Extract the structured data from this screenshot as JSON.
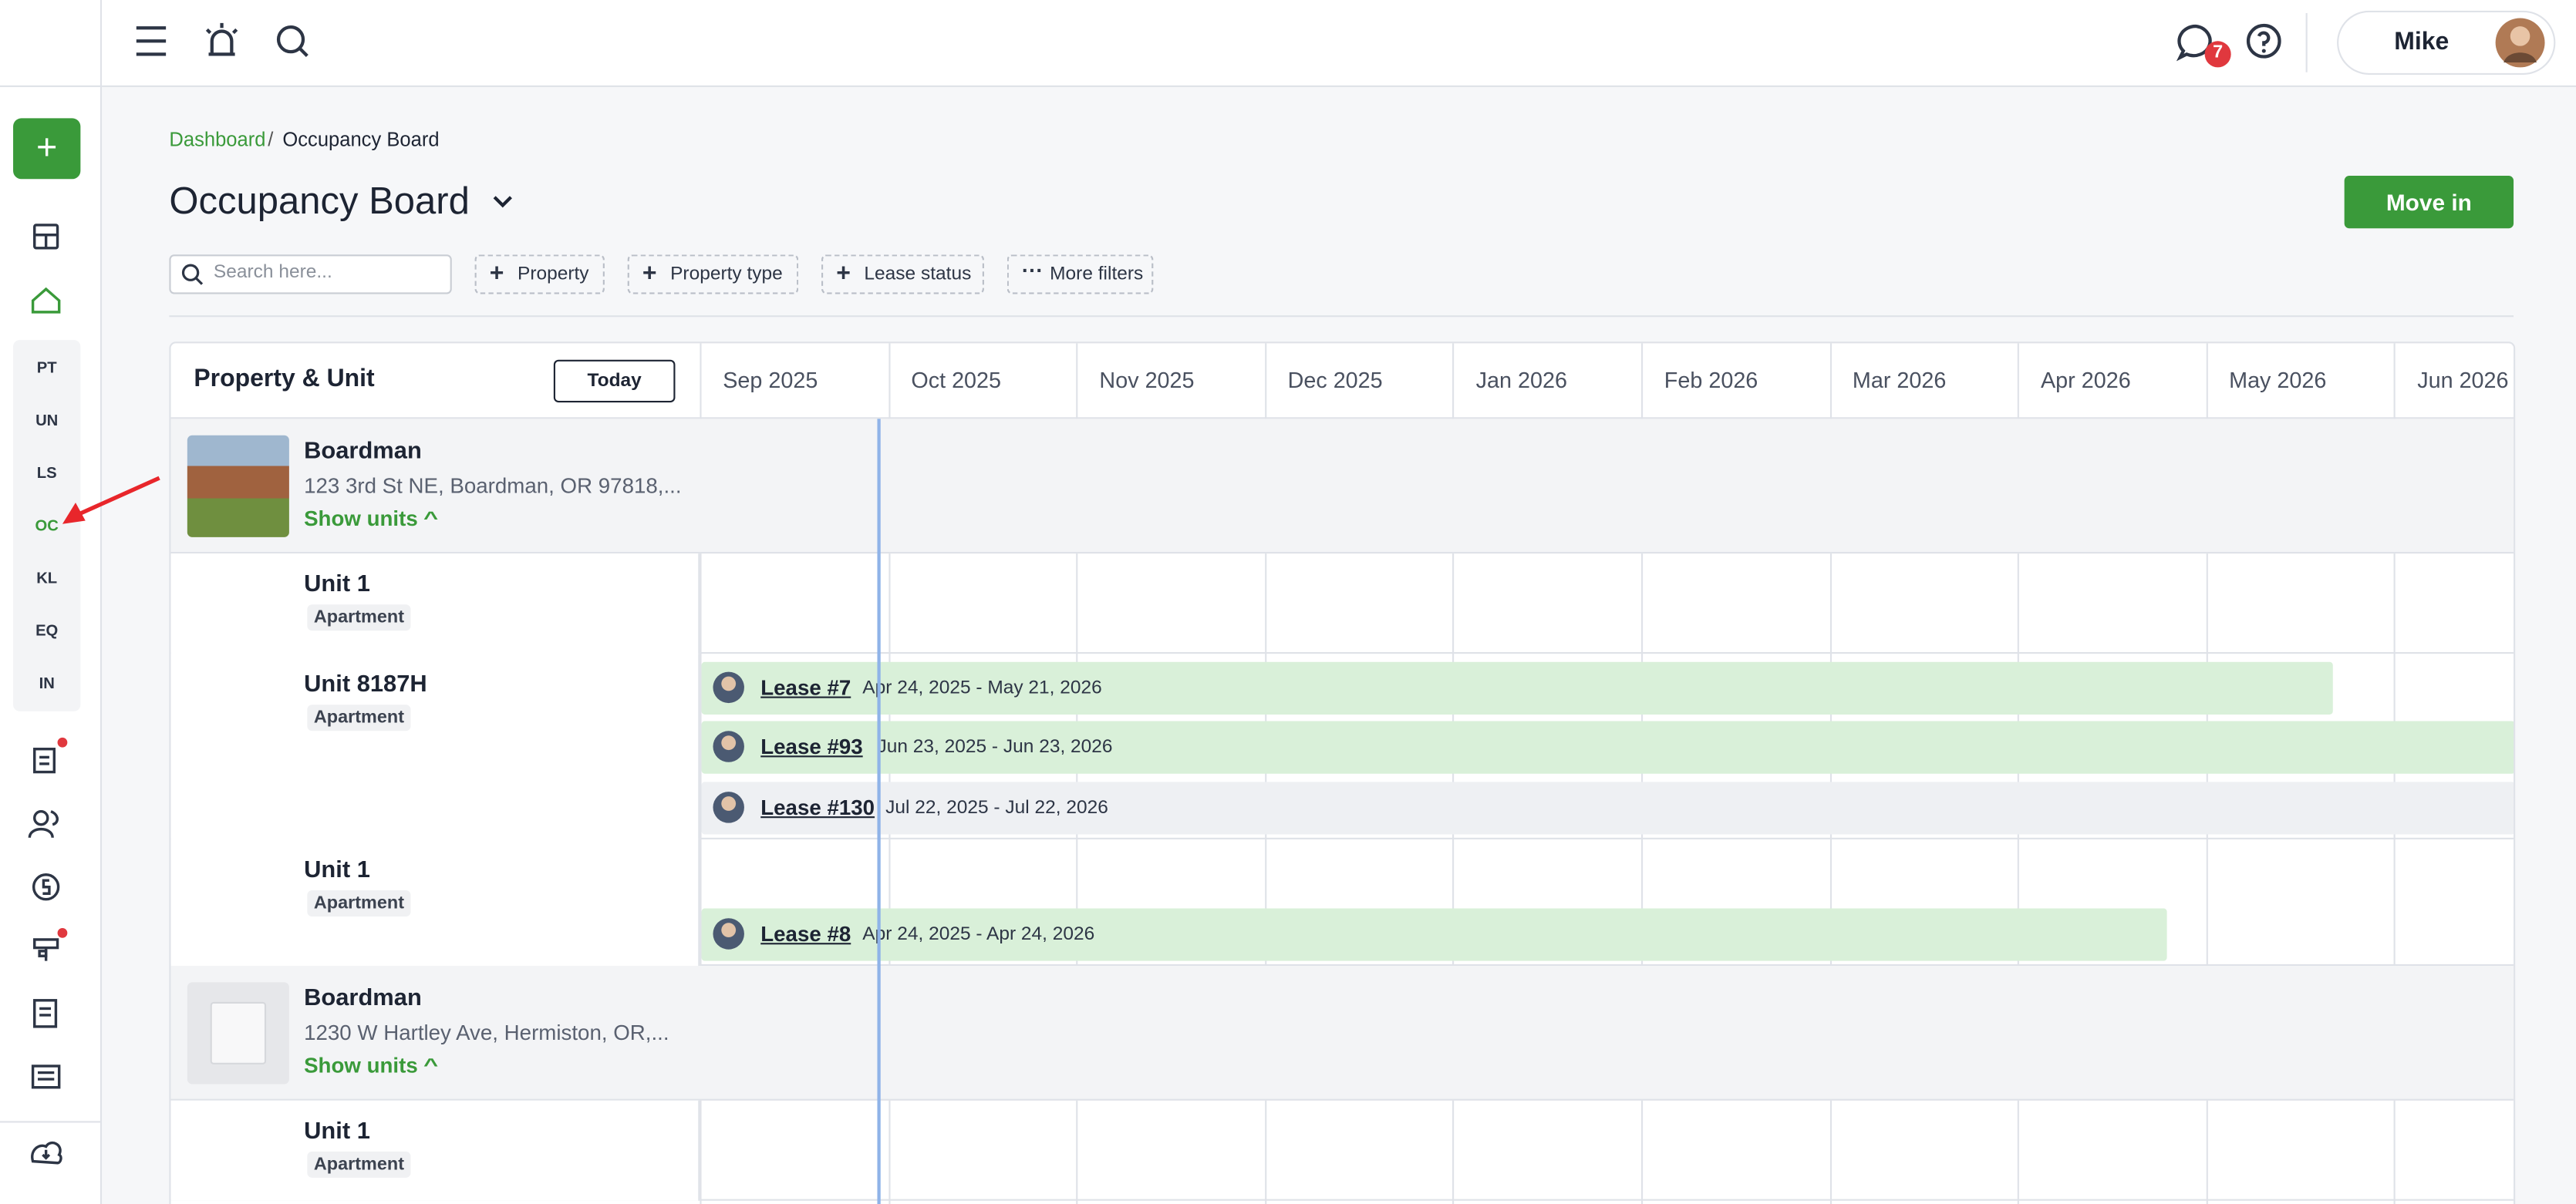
{
  "topbar": {
    "badge": "7",
    "user": "Mike"
  },
  "sidebar": {
    "nav": [
      "PT",
      "UN",
      "LS",
      "OC",
      "KL",
      "EQ",
      "IN"
    ]
  },
  "breadcrumb": [
    "Dashboard",
    "Occupancy Board"
  ],
  "page": {
    "title": "Occupancy Board",
    "button": "Move in"
  },
  "filters": {
    "search_placeholder": "Search here...",
    "chips": [
      "Property",
      "Property type",
      "Lease status",
      "More filters"
    ]
  },
  "board": {
    "header": "Property & Unit",
    "today": "Today",
    "months": [
      "Sep 2025",
      "Oct 2025",
      "Nov 2025",
      "Dec 2025",
      "Jan 2026",
      "Feb 2026",
      "Mar 2026",
      "Apr 2026",
      "May 2026",
      "Jun 2026"
    ]
  },
  "properties": [
    {
      "name": "Boardman",
      "address": "123 3rd St NE, Boardman, OR 97818,...",
      "toggle": "Show units",
      "units": [
        {
          "name": "Unit 1",
          "type": "Apartment",
          "leases": []
        },
        {
          "name": "Unit 8187H",
          "type": "Apartment",
          "leases": [
            {
              "label": "Lease #7",
              "dates": "Apr 24, 2025 - May 21, 2026"
            },
            {
              "label": "Lease #93",
              "dates": "Jun 23, 2025 - Jun 23, 2026"
            },
            {
              "label": "Lease #130",
              "dates": "Jul 22, 2025 - Jul 22, 2026"
            }
          ]
        },
        {
          "name": "Unit 1",
          "type": "Apartment",
          "leases": [
            {
              "label": "Lease #8",
              "dates": "Apr 24, 2025 - Apr 24, 2026"
            }
          ]
        }
      ]
    },
    {
      "name": "Boardman",
      "address": "1230 W Hartley Ave, Hermiston, OR,...",
      "toggle": "Show units",
      "units": [
        {
          "name": "Unit 1",
          "type": "Apartment",
          "leases": []
        }
      ]
    }
  ]
}
